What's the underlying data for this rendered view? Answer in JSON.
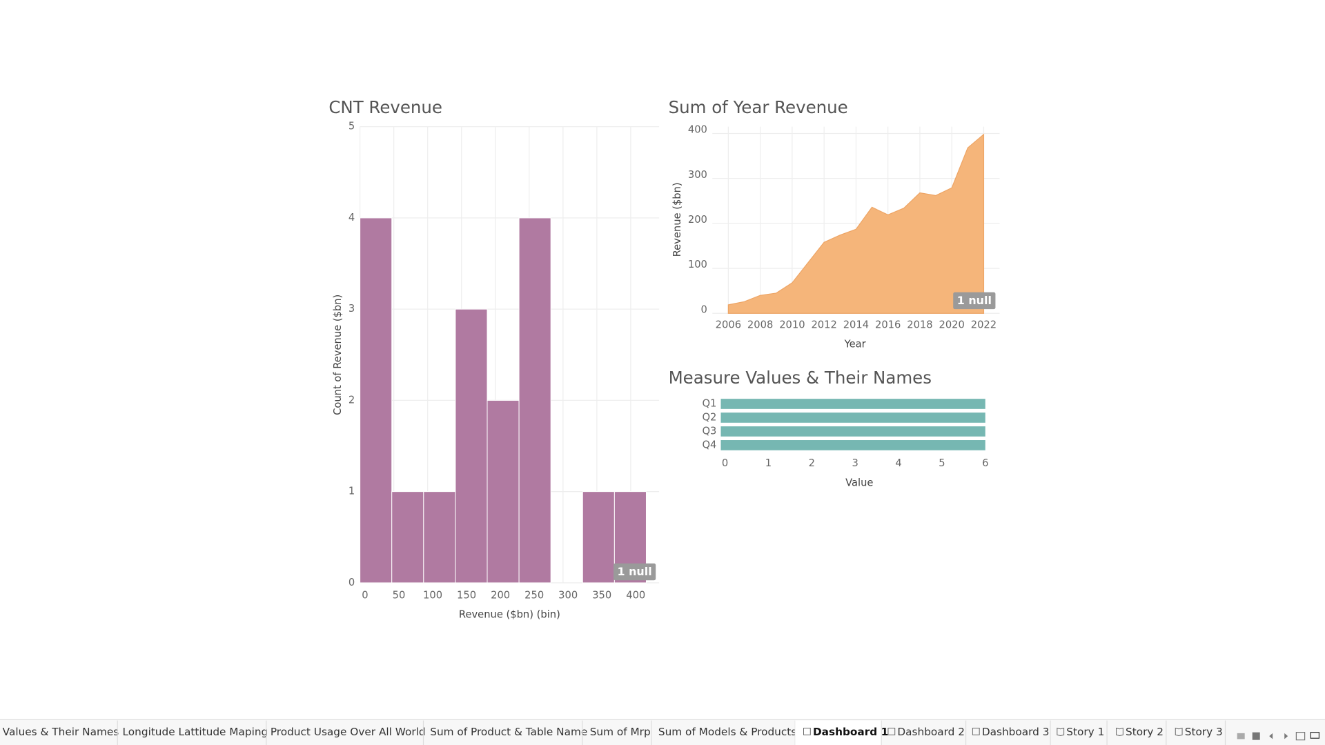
{
  "chart_data": [
    {
      "type": "histogram",
      "title": "CNT Revenue",
      "bins": [
        0,
        47,
        94,
        141,
        188,
        235,
        282,
        329,
        376,
        423
      ],
      "values": [
        4,
        1,
        1,
        3,
        2,
        4,
        0,
        1,
        1
      ],
      "color": "#b07aa1",
      "xlim": [
        0,
        442
      ],
      "xticks": [
        0,
        50,
        100,
        150,
        200,
        250,
        300,
        350,
        400
      ],
      "ylim": [
        0,
        5
      ],
      "yticks": [
        0,
        1,
        2,
        3,
        4,
        5
      ],
      "x_label": "Revenue ($bn) (bin)",
      "y_label": "Count of Revenue ($bn)",
      "annotation": "1 null",
      "grid": true
    },
    {
      "type": "area",
      "title": "Sum of Year Revenue",
      "x": [
        2006,
        2007,
        2008,
        2009,
        2010,
        2011,
        2012,
        2013,
        2014,
        2015,
        2016,
        2017,
        2018,
        2019,
        2020,
        2021,
        2022
      ],
      "values": [
        19,
        26,
        40,
        45,
        68,
        113,
        158,
        174,
        187,
        236,
        219,
        234,
        268,
        262,
        279,
        368,
        398
      ],
      "color": "#f5b57a",
      "xlim": [
        2005,
        2023
      ],
      "xticks": [
        2006,
        2008,
        2010,
        2012,
        2014,
        2016,
        2018,
        2020,
        2022
      ],
      "ylim": [
        0,
        415
      ],
      "yticks": [
        0,
        100,
        200,
        300,
        400
      ],
      "x_label": "Year",
      "y_label": "Revenue ($bn)",
      "annotation": "1 null",
      "grid": true
    },
    {
      "type": "hbar",
      "title": "Measure Values & Their Names",
      "categories": [
        "Q1",
        "Q2",
        "Q3",
        "Q4"
      ],
      "values": [
        6,
        6,
        6,
        6
      ],
      "color": "#76b7b2",
      "xlim": [
        0,
        6
      ],
      "xticks": [
        0,
        1,
        2,
        3,
        4,
        5,
        6
      ],
      "x_label": "Value"
    }
  ],
  "tabs": [
    "Values & Their Names",
    "Longitude Lattitude Maping",
    "Product Usage  Over All World",
    "Sum of Product & Table Name",
    "Sum of Mrp",
    "Sum of Models & Products",
    "Dashboard 1",
    "Dashboard 2",
    "Dashboard 3",
    "Story 1",
    "Story 2",
    "Story 3"
  ],
  "active_tab_index": 6
}
